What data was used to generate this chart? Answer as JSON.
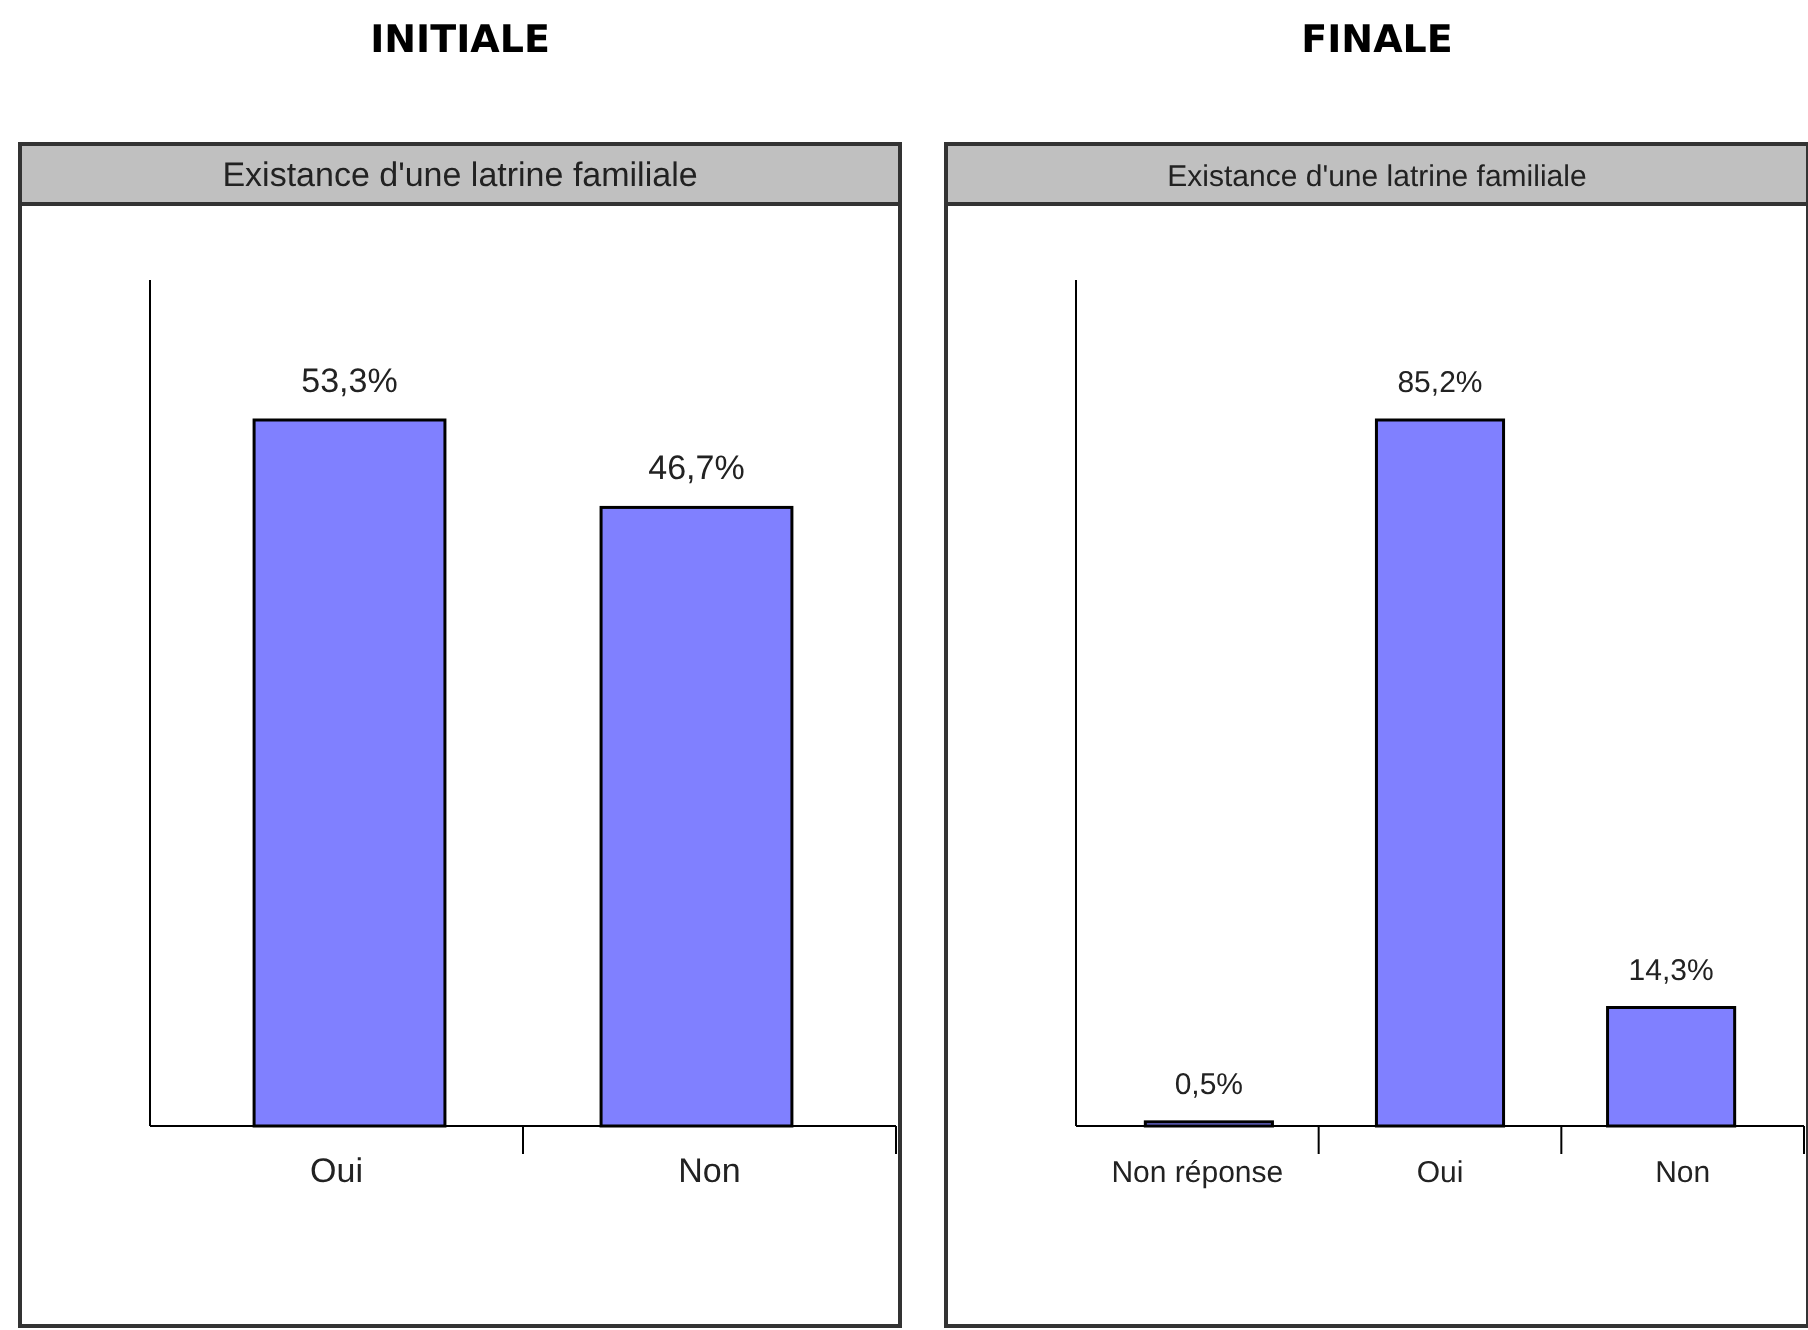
{
  "chart_data": [
    {
      "type": "bar",
      "title": "INITIALE",
      "subtitle": "Existance d'une latrine familiale",
      "categories": [
        "Oui",
        "Non"
      ],
      "values": [
        53.3,
        46.7
      ],
      "value_labels": [
        "53,3%",
        "46,7%"
      ],
      "color": "#8080ff"
    },
    {
      "type": "bar",
      "title": "FINALE",
      "subtitle": "Existance d'une latrine familiale",
      "categories": [
        "Non réponse",
        "Oui",
        "Non"
      ],
      "values": [
        0.5,
        85.2,
        14.3
      ],
      "value_labels": [
        "0,5%",
        "85,2%",
        "14,3%"
      ],
      "color": "#8080ff"
    }
  ]
}
